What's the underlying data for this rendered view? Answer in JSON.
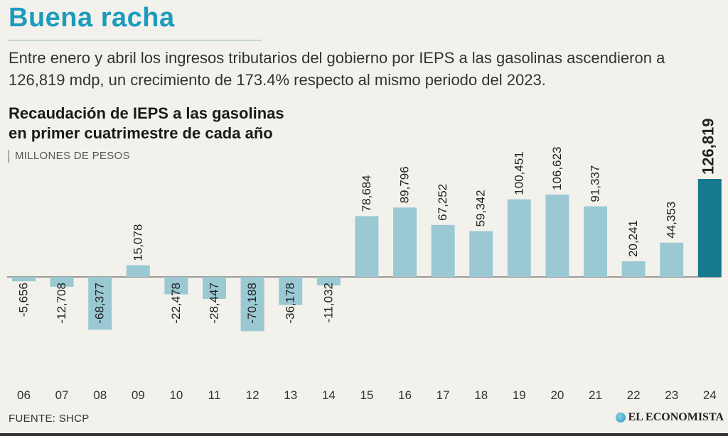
{
  "headline": "Buena racha",
  "dek": "Entre enero y abril los ingresos tributarios del gobierno por IEPS a las gasolinas ascendieron a 126,819 mdp, un crecimiento de 173.4% respecto al mismo periodo del 2023.",
  "chart_title_line1": "Recaudación de IEPS a las gasolinas",
  "chart_title_line2": "en primer cuatrimestre de cada año",
  "units": "MILLONES DE PESOS",
  "source": "FUENTE: SHCP",
  "brand": "EL ECONOMISTA",
  "colors": {
    "bar": "#9ac9d3",
    "highlight": "#15798f",
    "headline": "#1c9bbd"
  },
  "chart_data": {
    "type": "bar",
    "title": "Recaudación de IEPS a las gasolinas en primer cuatrimestre de cada año",
    "ylabel": "MILLONES DE PESOS",
    "categories": [
      "06",
      "07",
      "08",
      "09",
      "10",
      "11",
      "12",
      "13",
      "14",
      "15",
      "16",
      "17",
      "18",
      "19",
      "20",
      "21",
      "22",
      "23",
      "24"
    ],
    "values": [
      -5656,
      -12708,
      -68377,
      15078,
      -22478,
      -28447,
      -70188,
      -36178,
      -11032,
      78684,
      89796,
      67252,
      59342,
      100451,
      106623,
      91337,
      20241,
      44353,
      126819
    ],
    "labels": [
      "-5,656",
      "-12,708",
      "-68,377",
      "15,078",
      "-22,478",
      "-28,447",
      "-70,188",
      "-36,178",
      "-11,032",
      "78,684",
      "89,796",
      "67,252",
      "59,342",
      "100,451",
      "106,623",
      "91,337",
      "20,241",
      "44,353",
      "126,819"
    ],
    "highlight_index": 18,
    "grid": false
  }
}
